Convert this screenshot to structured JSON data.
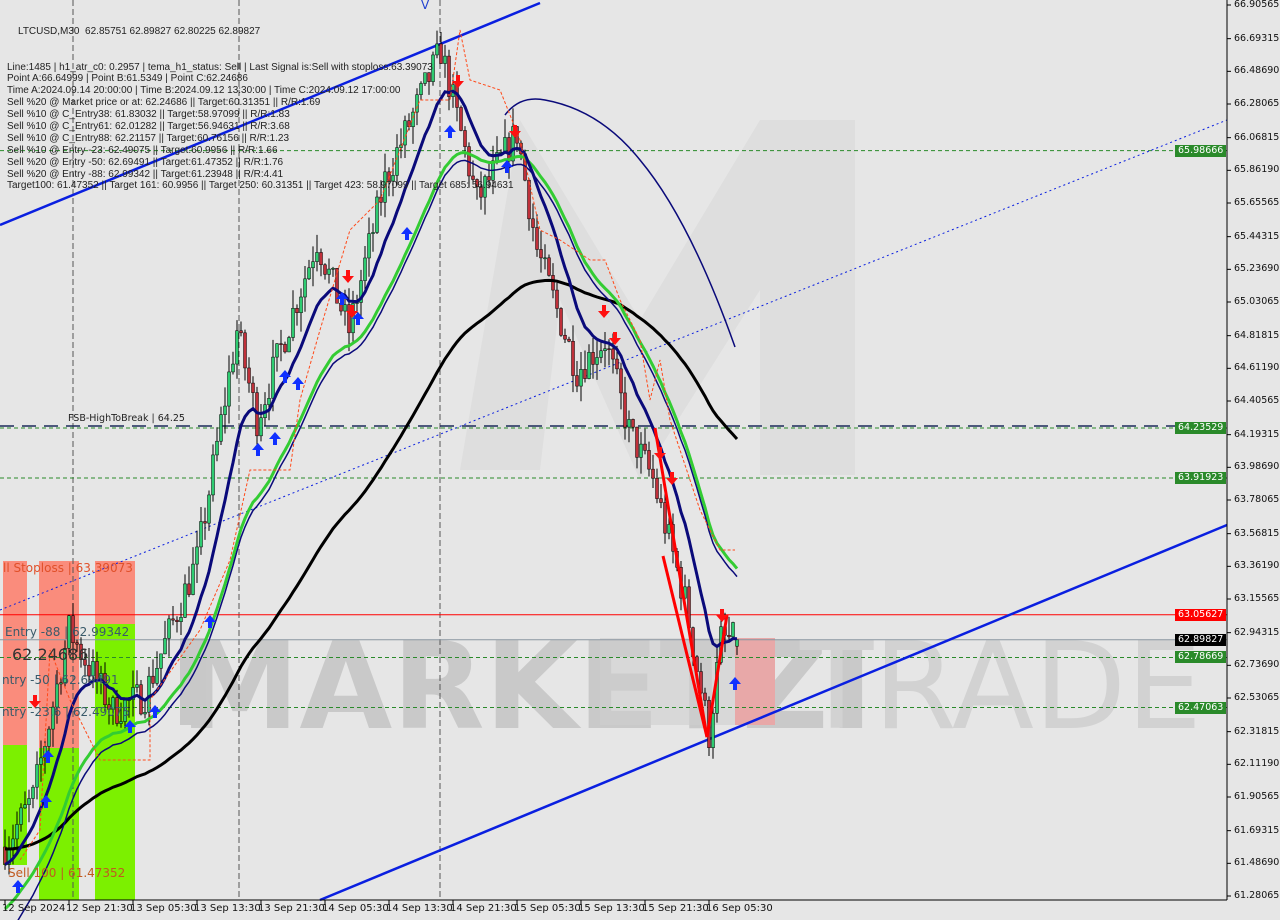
{
  "header": {
    "title": "LTCUSD,M30  62.85751 62.89827 62.80225 62.89827",
    "lines": [
      "Line:1485 | h1_atr_c0: 0.2957 | tema_h1_status: Sell | Last Signal is:Sell with stoploss:63.39073",
      "Point A:66.64999 | Point B:61.5349 | Point C:62.24686",
      "Time A:2024.09.14 20:00:00 | Time B:2024.09.12 13:30:00 | Time C:2024.09.12 17:00:00",
      "Sell %20 @ Market price or at: 62.24686 || Target:60.31351 || R/R:1.69",
      "Sell %10 @ C_Entry38: 61.83032 || Target:58.97099 || R/R:1.83",
      "Sell %10 @ C_Entry61: 62.01282 || Target:56.94631 || R/R:3.68",
      "Sell %10 @ C_Entry88: 62.21157 || Target:60.76156 || R/R:1.23",
      "Sell %10 @ Entry -23: 62.49075 || Target:60.9956 || R/R:1.66",
      "Sell %20 @ Entry -50: 62.69491 || Target:61.47352 || R/R:1.76",
      "Sell %20 @ Entry -88: 62.99342 || Target:61.23948 || R/R:4.41",
      "Target100: 61.47352 || Target 161: 60.9956 || Target 250: 60.31351 || Target 423: 58.97099 || Target 685: 56.94631"
    ]
  },
  "chart_labels": {
    "fsb": "FSB-HighToBreak | 64.25",
    "stoploss": "ll Stoploss | 63.39073",
    "entry88": "Entry -88 | 62.99342",
    "entry50": "ntry -50 | 62.69491",
    "pointc": "62.24686",
    "entry23": "ntry -23.6 | 62.49075",
    "sell100": "Sell 100 | 61.47352",
    "v_marker": "V"
  },
  "watermark": "MARKETZI TRADE",
  "colors": {
    "background": "#e6e6e6",
    "bull_candle": "#2ecc71",
    "bear_candle": "#c0303a",
    "channel": "#0a1fe0",
    "ma_fast": "#0a0a7a",
    "ma_mid": "#33cc33",
    "ma_slow": "#000000",
    "stop_zone": "#fa8c7c",
    "target_zone": "#7cf000",
    "level_green": "#2a8a2a",
    "level_red": "#ff0000"
  },
  "chart_data": {
    "type": "candlestick",
    "symbol": "LTCUSD",
    "timeframe": "M30",
    "ylim": [
      61.28065,
      66.90565
    ],
    "y_ticks": [
      "66.90565",
      "66.69315",
      "66.48690",
      "66.28065",
      "66.06815",
      "65.86190",
      "65.65565",
      "65.44315",
      "65.23690",
      "65.03065",
      "64.81815",
      "64.61190",
      "64.40565",
      "64.19315",
      "63.98690",
      "63.78065",
      "63.56815",
      "63.36190",
      "63.15565",
      "62.94315",
      "62.73690",
      "62.53065",
      "62.31815",
      "62.11190",
      "61.90565",
      "61.69315",
      "61.48690",
      "61.28065"
    ],
    "x_ticks": [
      "12 Sep 2024",
      "12 Sep 21:30",
      "13 Sep 05:30",
      "13 Sep 13:30",
      "13 Sep 21:30",
      "14 Sep 05:30",
      "14 Sep 13:30",
      "14 Sep 21:30",
      "15 Sep 05:30",
      "15 Sep 13:30",
      "15 Sep 21:30",
      "16 Sep 05:30"
    ],
    "price_path": [
      [
        "2024-09-12 13:30",
        61.59
      ],
      [
        "2024-09-12 17:00",
        61.9
      ],
      [
        "2024-09-12 21:30",
        62.96
      ],
      [
        "2024-09-13 03:00",
        62.45
      ],
      [
        "2024-09-13 07:00",
        62.55
      ],
      [
        "2024-09-13 13:30",
        63.4
      ],
      [
        "2024-09-13 18:30",
        64.85
      ],
      [
        "2024-09-13 21:00",
        64.29
      ],
      [
        "2024-09-14 04:30",
        65.42
      ],
      [
        "2024-09-14 08:30",
        64.85
      ],
      [
        "2024-09-14 13:00",
        65.8
      ],
      [
        "2024-09-14 20:00",
        66.62
      ],
      [
        "2024-09-15 00:30",
        65.67
      ],
      [
        "2024-09-15 05:30",
        66.1
      ],
      [
        "2024-09-15 08:00",
        65.36
      ],
      [
        "2024-09-15 13:00",
        64.6
      ],
      [
        "2024-09-15 16:30",
        64.79
      ],
      [
        "2024-09-15 19:30",
        64.22
      ],
      [
        "2024-09-15 22:30",
        63.91
      ],
      [
        "2024-09-16 02:30",
        63.15
      ],
      [
        "2024-09-16 05:30",
        62.3
      ],
      [
        "2024-09-16 07:00",
        62.9
      ],
      [
        "2024-09-16 09:00",
        62.89827
      ]
    ],
    "last": {
      "open": 62.85751,
      "high": 62.89827,
      "low": 62.80225,
      "close": 62.89827
    },
    "levels": [
      {
        "value": 65.98666,
        "label": "65.98666",
        "color": "#2a8a2a",
        "style": "dashed"
      },
      {
        "value": 64.23529,
        "label": "64.23529",
        "color": "#2a8a2a",
        "style": "dashed"
      },
      {
        "value": 63.91923,
        "label": "63.91923",
        "color": "#2a8a2a",
        "style": "dashed"
      },
      {
        "value": 63.05627,
        "label": "63.05627",
        "color": "#ff0000",
        "style": "solid"
      },
      {
        "value": 62.89827,
        "label": "62.89827",
        "color": "#000000",
        "style": "solid"
      },
      {
        "value": 62.78669,
        "label": "62.78669",
        "color": "#2a8a2a",
        "style": "dashed"
      },
      {
        "value": 62.47063,
        "label": "62.47063",
        "color": "#2a8a2a",
        "style": "dashed"
      }
    ],
    "grid": false
  }
}
